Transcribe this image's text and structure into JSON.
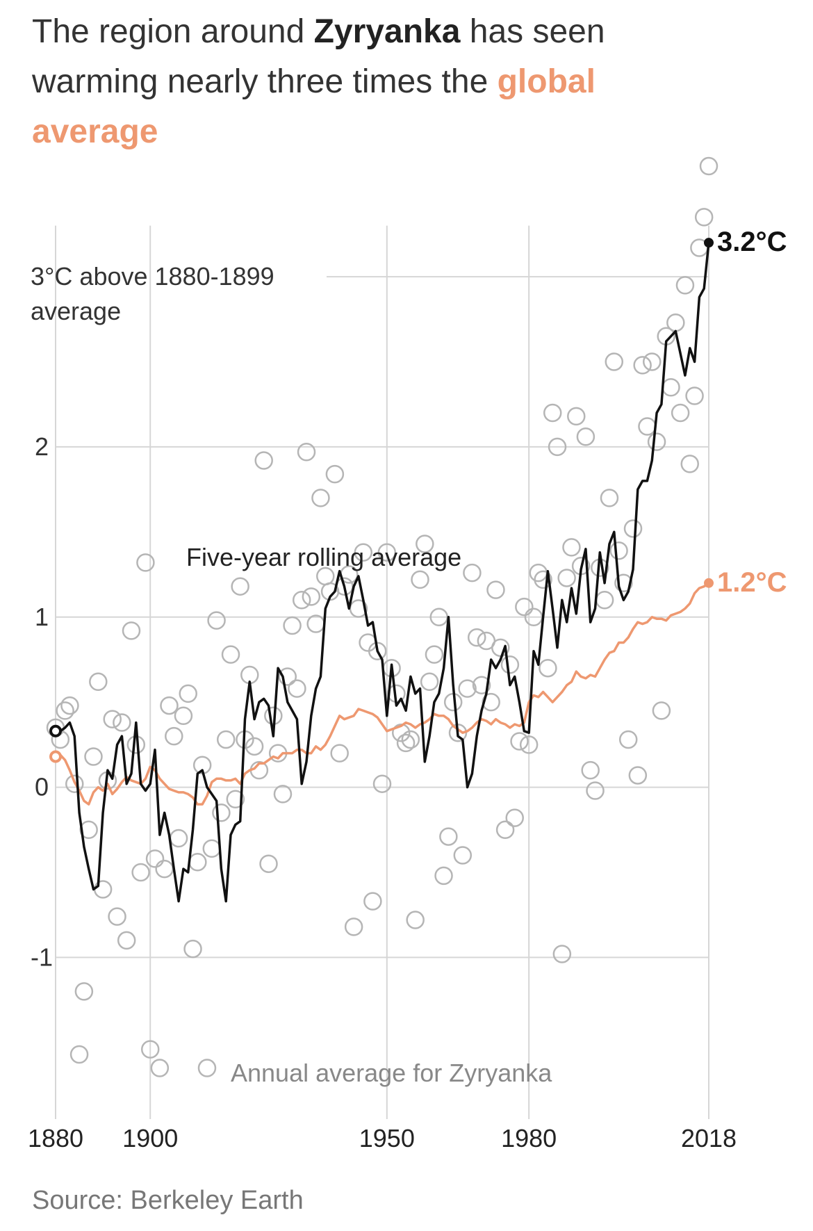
{
  "title": {
    "part1": "The region around ",
    "bold": "Zyryanka",
    "part2": " has seen warming nearly three times the ",
    "highlight": "global average"
  },
  "source": "Source: Berkeley Earth",
  "colors": {
    "local": "#111111",
    "global": "#ee9870",
    "dots": "#b5b5b5",
    "grid": "#d6d6d6"
  },
  "chart_data": {
    "type": "line",
    "x_range": [
      1880,
      2018
    ],
    "ylim": [
      -1.95,
      3.85
    ],
    "y_ticks": [
      {
        "value": 3,
        "label": "3°C above 1880-1899",
        "label2": "average"
      },
      {
        "value": 2,
        "label": "2"
      },
      {
        "value": 1,
        "label": "1"
      },
      {
        "value": 0,
        "label": "0"
      },
      {
        "value": -1,
        "label": "-1"
      }
    ],
    "x_ticks": [
      {
        "value": 1880,
        "label": "1880"
      },
      {
        "value": 1900,
        "label": "1900"
      },
      {
        "value": 1950,
        "label": "1950"
      },
      {
        "value": 1980,
        "label": "1980"
      },
      {
        "value": 2018,
        "label": "2018"
      }
    ],
    "annotations": {
      "rolling": "Five-year rolling average",
      "annual": "Annual average for Zyryanka",
      "end_local": "3.2°C",
      "end_global": "1.2°C"
    },
    "series": [
      {
        "name": "Annual average for Zyryanka",
        "style": "dots",
        "x": [
          1880,
          1881,
          1882,
          1883,
          1884,
          1885,
          1886,
          1887,
          1888,
          1889,
          1890,
          1891,
          1892,
          1893,
          1894,
          1895,
          1896,
          1897,
          1898,
          1899,
          1900,
          1901,
          1902,
          1903,
          1904,
          1905,
          1906,
          1907,
          1908,
          1909,
          1910,
          1911,
          1912,
          1913,
          1914,
          1915,
          1916,
          1917,
          1918,
          1919,
          1920,
          1921,
          1922,
          1923,
          1924,
          1925,
          1926,
          1927,
          1928,
          1929,
          1930,
          1931,
          1932,
          1933,
          1934,
          1935,
          1936,
          1937,
          1938,
          1939,
          1940,
          1941,
          1942,
          1943,
          1944,
          1945,
          1946,
          1947,
          1948,
          1949,
          1950,
          1951,
          1952,
          1953,
          1954,
          1955,
          1956,
          1957,
          1958,
          1959,
          1960,
          1961,
          1962,
          1963,
          1964,
          1965,
          1966,
          1967,
          1968,
          1969,
          1970,
          1971,
          1972,
          1973,
          1974,
          1975,
          1976,
          1977,
          1978,
          1979,
          1980,
          1981,
          1982,
          1983,
          1984,
          1985,
          1986,
          1987,
          1988,
          1989,
          1990,
          1991,
          1992,
          1993,
          1994,
          1995,
          1996,
          1997,
          1998,
          1999,
          2000,
          2001,
          2002,
          2003,
          2004,
          2005,
          2006,
          2007,
          2008,
          2009,
          2010,
          2011,
          2012,
          2013,
          2014,
          2015,
          2016,
          2017,
          2018
        ],
        "y": [
          0.35,
          0.28,
          0.45,
          0.48,
          0.02,
          -1.57,
          -1.2,
          -0.25,
          0.18,
          0.62,
          -0.6,
          0.04,
          0.4,
          -0.76,
          0.38,
          -0.9,
          0.92,
          0.25,
          -0.5,
          1.32,
          -1.54,
          -0.42,
          -1.65,
          -0.48,
          0.48,
          0.3,
          -0.3,
          0.42,
          0.55,
          -0.95,
          -0.44,
          0.13,
          -1.65,
          -0.36,
          0.98,
          -0.15,
          0.28,
          0.78,
          -0.07,
          1.18,
          0.28,
          0.66,
          0.24,
          0.1,
          1.92,
          -0.45,
          0.42,
          0.2,
          -0.04,
          0.65,
          0.95,
          0.58,
          1.1,
          1.97,
          1.12,
          0.96,
          1.7,
          1.24,
          1.15,
          1.84,
          0.2,
          1.18,
          1.25,
          -0.82,
          1.05,
          1.38,
          0.85,
          -0.67,
          0.8,
          0.02,
          1.38,
          0.7,
          0.55,
          0.32,
          0.26,
          0.28,
          -0.78,
          1.22,
          1.43,
          0.62,
          0.78,
          1.0,
          -0.52,
          -0.29,
          0.5,
          0.32,
          -0.4,
          0.58,
          1.26,
          0.88,
          0.6,
          0.86,
          0.5,
          1.16,
          0.82,
          -0.25,
          0.72,
          -0.18,
          0.27,
          1.06,
          0.25,
          1.0,
          1.26,
          1.22,
          0.7,
          2.2,
          2.0,
          -0.98,
          1.23,
          1.41,
          2.18,
          1.3,
          2.06,
          0.1,
          -0.02,
          1.29,
          1.1,
          1.7,
          2.5,
          1.39,
          1.2,
          0.28,
          1.52,
          0.07,
          2.48,
          2.12,
          2.5,
          2.03,
          0.45,
          2.65,
          2.35,
          2.73,
          2.2,
          2.95,
          1.9,
          2.3,
          3.17,
          3.35,
          3.65
        ]
      },
      {
        "name": "Five-year rolling average",
        "style": "line",
        "x": [
          1880,
          1881,
          1882,
          1883,
          1884,
          1885,
          1886,
          1887,
          1888,
          1889,
          1890,
          1891,
          1892,
          1893,
          1894,
          1895,
          1896,
          1897,
          1898,
          1899,
          1900,
          1901,
          1902,
          1903,
          1904,
          1905,
          1906,
          1907,
          1908,
          1909,
          1910,
          1911,
          1912,
          1913,
          1914,
          1915,
          1916,
          1917,
          1918,
          1919,
          1920,
          1921,
          1922,
          1923,
          1924,
          1925,
          1926,
          1927,
          1928,
          1929,
          1930,
          1931,
          1932,
          1933,
          1934,
          1935,
          1936,
          1937,
          1938,
          1939,
          1940,
          1941,
          1942,
          1943,
          1944,
          1945,
          1946,
          1947,
          1948,
          1949,
          1950,
          1951,
          1952,
          1953,
          1954,
          1955,
          1956,
          1957,
          1958,
          1959,
          1960,
          1961,
          1962,
          1963,
          1964,
          1965,
          1966,
          1967,
          1968,
          1969,
          1970,
          1971,
          1972,
          1973,
          1974,
          1975,
          1976,
          1977,
          1978,
          1979,
          1980,
          1981,
          1982,
          1983,
          1984,
          1985,
          1986,
          1987,
          1988,
          1989,
          1990,
          1991,
          1992,
          1993,
          1994,
          1995,
          1996,
          1997,
          1998,
          1999,
          2000,
          2001,
          2002,
          2003,
          2004,
          2005,
          2006,
          2007,
          2008,
          2009,
          2010,
          2011,
          2012,
          2013,
          2014,
          2015,
          2016,
          2017,
          2018
        ],
        "y": [
          0.33,
          0.33,
          0.35,
          0.38,
          0.3,
          -0.15,
          -0.35,
          -0.48,
          -0.6,
          -0.58,
          -0.15,
          0.1,
          0.05,
          0.25,
          0.3,
          0.02,
          0.08,
          0.38,
          0.02,
          -0.02,
          0.02,
          0.22,
          -0.28,
          -0.15,
          -0.28,
          -0.48,
          -0.67,
          -0.48,
          -0.5,
          -0.25,
          0.08,
          0.1,
          0.0,
          -0.04,
          -0.08,
          -0.48,
          -0.67,
          -0.28,
          -0.22,
          -0.2,
          0.4,
          0.62,
          0.4,
          0.5,
          0.52,
          0.48,
          0.3,
          0.7,
          0.65,
          0.5,
          0.45,
          0.4,
          0.02,
          0.15,
          0.42,
          0.58,
          0.65,
          1.05,
          1.12,
          1.15,
          1.27,
          1.18,
          1.05,
          1.18,
          1.24,
          1.1,
          0.95,
          0.97,
          0.8,
          0.75,
          0.42,
          0.72,
          0.48,
          0.52,
          0.45,
          0.65,
          0.55,
          0.58,
          0.15,
          0.3,
          0.5,
          0.55,
          0.7,
          1.0,
          0.6,
          0.3,
          0.28,
          0.0,
          0.08,
          0.3,
          0.45,
          0.55,
          0.75,
          0.7,
          0.75,
          0.83,
          0.6,
          0.65,
          0.5,
          0.33,
          0.32,
          0.8,
          0.72,
          1.0,
          1.27,
          1.05,
          0.82,
          1.1,
          0.97,
          1.17,
          1.02,
          1.28,
          1.4,
          0.97,
          1.05,
          1.38,
          1.2,
          1.43,
          1.5,
          1.18,
          1.1,
          1.15,
          1.28,
          1.75,
          1.8,
          1.8,
          1.92,
          2.2,
          2.25,
          2.62,
          2.65,
          2.68,
          2.55,
          2.42,
          2.58,
          2.5,
          2.88,
          2.93,
          3.2
        ]
      },
      {
        "name": "global average",
        "style": "line",
        "x": [
          1880,
          1881,
          1882,
          1883,
          1884,
          1885,
          1886,
          1887,
          1888,
          1889,
          1890,
          1891,
          1892,
          1893,
          1894,
          1895,
          1896,
          1897,
          1898,
          1899,
          1900,
          1901,
          1902,
          1903,
          1904,
          1905,
          1906,
          1907,
          1908,
          1909,
          1910,
          1911,
          1912,
          1913,
          1914,
          1915,
          1916,
          1917,
          1918,
          1919,
          1920,
          1921,
          1922,
          1923,
          1924,
          1925,
          1926,
          1927,
          1928,
          1929,
          1930,
          1931,
          1932,
          1933,
          1934,
          1935,
          1936,
          1937,
          1938,
          1939,
          1940,
          1941,
          1942,
          1943,
          1944,
          1945,
          1946,
          1947,
          1948,
          1949,
          1950,
          1951,
          1952,
          1953,
          1954,
          1955,
          1956,
          1957,
          1958,
          1959,
          1960,
          1961,
          1962,
          1963,
          1964,
          1965,
          1966,
          1967,
          1968,
          1969,
          1970,
          1971,
          1972,
          1973,
          1974,
          1975,
          1976,
          1977,
          1978,
          1979,
          1980,
          1981,
          1982,
          1983,
          1984,
          1985,
          1986,
          1987,
          1988,
          1989,
          1990,
          1991,
          1992,
          1993,
          1994,
          1995,
          1996,
          1997,
          1998,
          1999,
          2000,
          2001,
          2002,
          2003,
          2004,
          2005,
          2006,
          2007,
          2008,
          2009,
          2010,
          2011,
          2012,
          2013,
          2014,
          2015,
          2016,
          2017,
          2018
        ],
        "y": [
          0.18,
          0.19,
          0.16,
          0.1,
          0.03,
          -0.02,
          -0.08,
          -0.1,
          -0.03,
          0.0,
          -0.02,
          0.02,
          -0.04,
          -0.01,
          0.03,
          0.06,
          0.04,
          0.03,
          0.02,
          0.05,
          0.12,
          0.1,
          0.05,
          0.02,
          -0.01,
          -0.02,
          -0.03,
          -0.03,
          -0.04,
          -0.06,
          -0.1,
          -0.1,
          -0.05,
          0.03,
          0.05,
          0.05,
          0.04,
          0.04,
          0.05,
          0.02,
          0.08,
          0.1,
          0.11,
          0.14,
          0.14,
          0.16,
          0.18,
          0.17,
          0.2,
          0.2,
          0.2,
          0.22,
          0.22,
          0.2,
          0.2,
          0.24,
          0.22,
          0.25,
          0.3,
          0.36,
          0.42,
          0.4,
          0.41,
          0.42,
          0.46,
          0.45,
          0.44,
          0.43,
          0.41,
          0.37,
          0.33,
          0.34,
          0.35,
          0.36,
          0.38,
          0.37,
          0.35,
          0.37,
          0.38,
          0.4,
          0.43,
          0.42,
          0.42,
          0.4,
          0.36,
          0.34,
          0.32,
          0.33,
          0.35,
          0.38,
          0.4,
          0.39,
          0.37,
          0.4,
          0.38,
          0.37,
          0.35,
          0.37,
          0.36,
          0.38,
          0.5,
          0.54,
          0.53,
          0.56,
          0.53,
          0.5,
          0.53,
          0.56,
          0.6,
          0.62,
          0.68,
          0.65,
          0.64,
          0.66,
          0.65,
          0.7,
          0.75,
          0.79,
          0.8,
          0.85,
          0.85,
          0.88,
          0.93,
          0.97,
          0.96,
          0.97,
          1.0,
          0.99,
          0.99,
          0.98,
          1.01,
          1.02,
          1.03,
          1.05,
          1.08,
          1.14,
          1.17,
          1.18,
          1.2
        ]
      }
    ]
  }
}
